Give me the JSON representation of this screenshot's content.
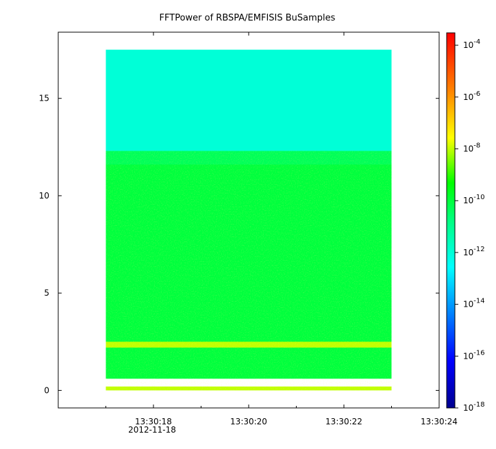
{
  "chart_data": {
    "type": "heatmap",
    "title": "FFTPower of RBSPA/EMFISIS  BuSamples",
    "x_axis": {
      "type": "time",
      "range": [
        "13:30:16.0",
        "13:30:24.0"
      ],
      "ticks": [
        {
          "value": "13:30:18",
          "label": "13:30:18"
        },
        {
          "value": "13:30:20",
          "label": "13:30:20"
        },
        {
          "value": "13:30:22",
          "label": "13:30:22"
        },
        {
          "value": "13:30:24",
          "label": "13:30:24"
        }
      ],
      "minor_ticks": [
        "13:30:17",
        "13:30:19",
        "13:30:21",
        "13:30:23"
      ],
      "date_label": "2012-11-18"
    },
    "y_axis": {
      "range": [
        -0.9,
        18.4
      ],
      "ticks": [
        0,
        5,
        10,
        15
      ],
      "label": ""
    },
    "data_extent": {
      "x": [
        "13:30:17.0",
        "13:30:23.0"
      ],
      "y": [
        0,
        17.5
      ]
    },
    "color_scale": {
      "type": "log",
      "range": [
        1e-18,
        0.0003
      ],
      "colormap": "rainbow",
      "tick_labels": [
        {
          "base": "10",
          "exp": "-4",
          "value": 0.0001
        },
        {
          "base": "10",
          "exp": "-6",
          "value": 1e-06
        },
        {
          "base": "10",
          "exp": "-8",
          "value": 1e-08
        },
        {
          "base": "10",
          "exp": "-10",
          "value": 1e-10
        },
        {
          "base": "10",
          "exp": "-12",
          "value": 1e-12
        },
        {
          "base": "10",
          "exp": "-14",
          "value": 1e-14
        },
        {
          "base": "10",
          "exp": "-16",
          "value": 1e-16
        },
        {
          "base": "10",
          "exp": "-18",
          "value": 1e-18
        }
      ]
    },
    "bands": [
      {
        "y_from": 12.3,
        "y_to": 17.5,
        "level": 1e-12
      },
      {
        "y_from": 0.6,
        "y_to": 12.3,
        "level": 1e-10
      },
      {
        "y_from": 2.2,
        "y_to": 2.5,
        "level": 1e-08
      },
      {
        "y_from": 0.0,
        "y_to": 0.2,
        "level": 1e-08
      }
    ],
    "grid": false,
    "legend": "colorbar-right"
  }
}
